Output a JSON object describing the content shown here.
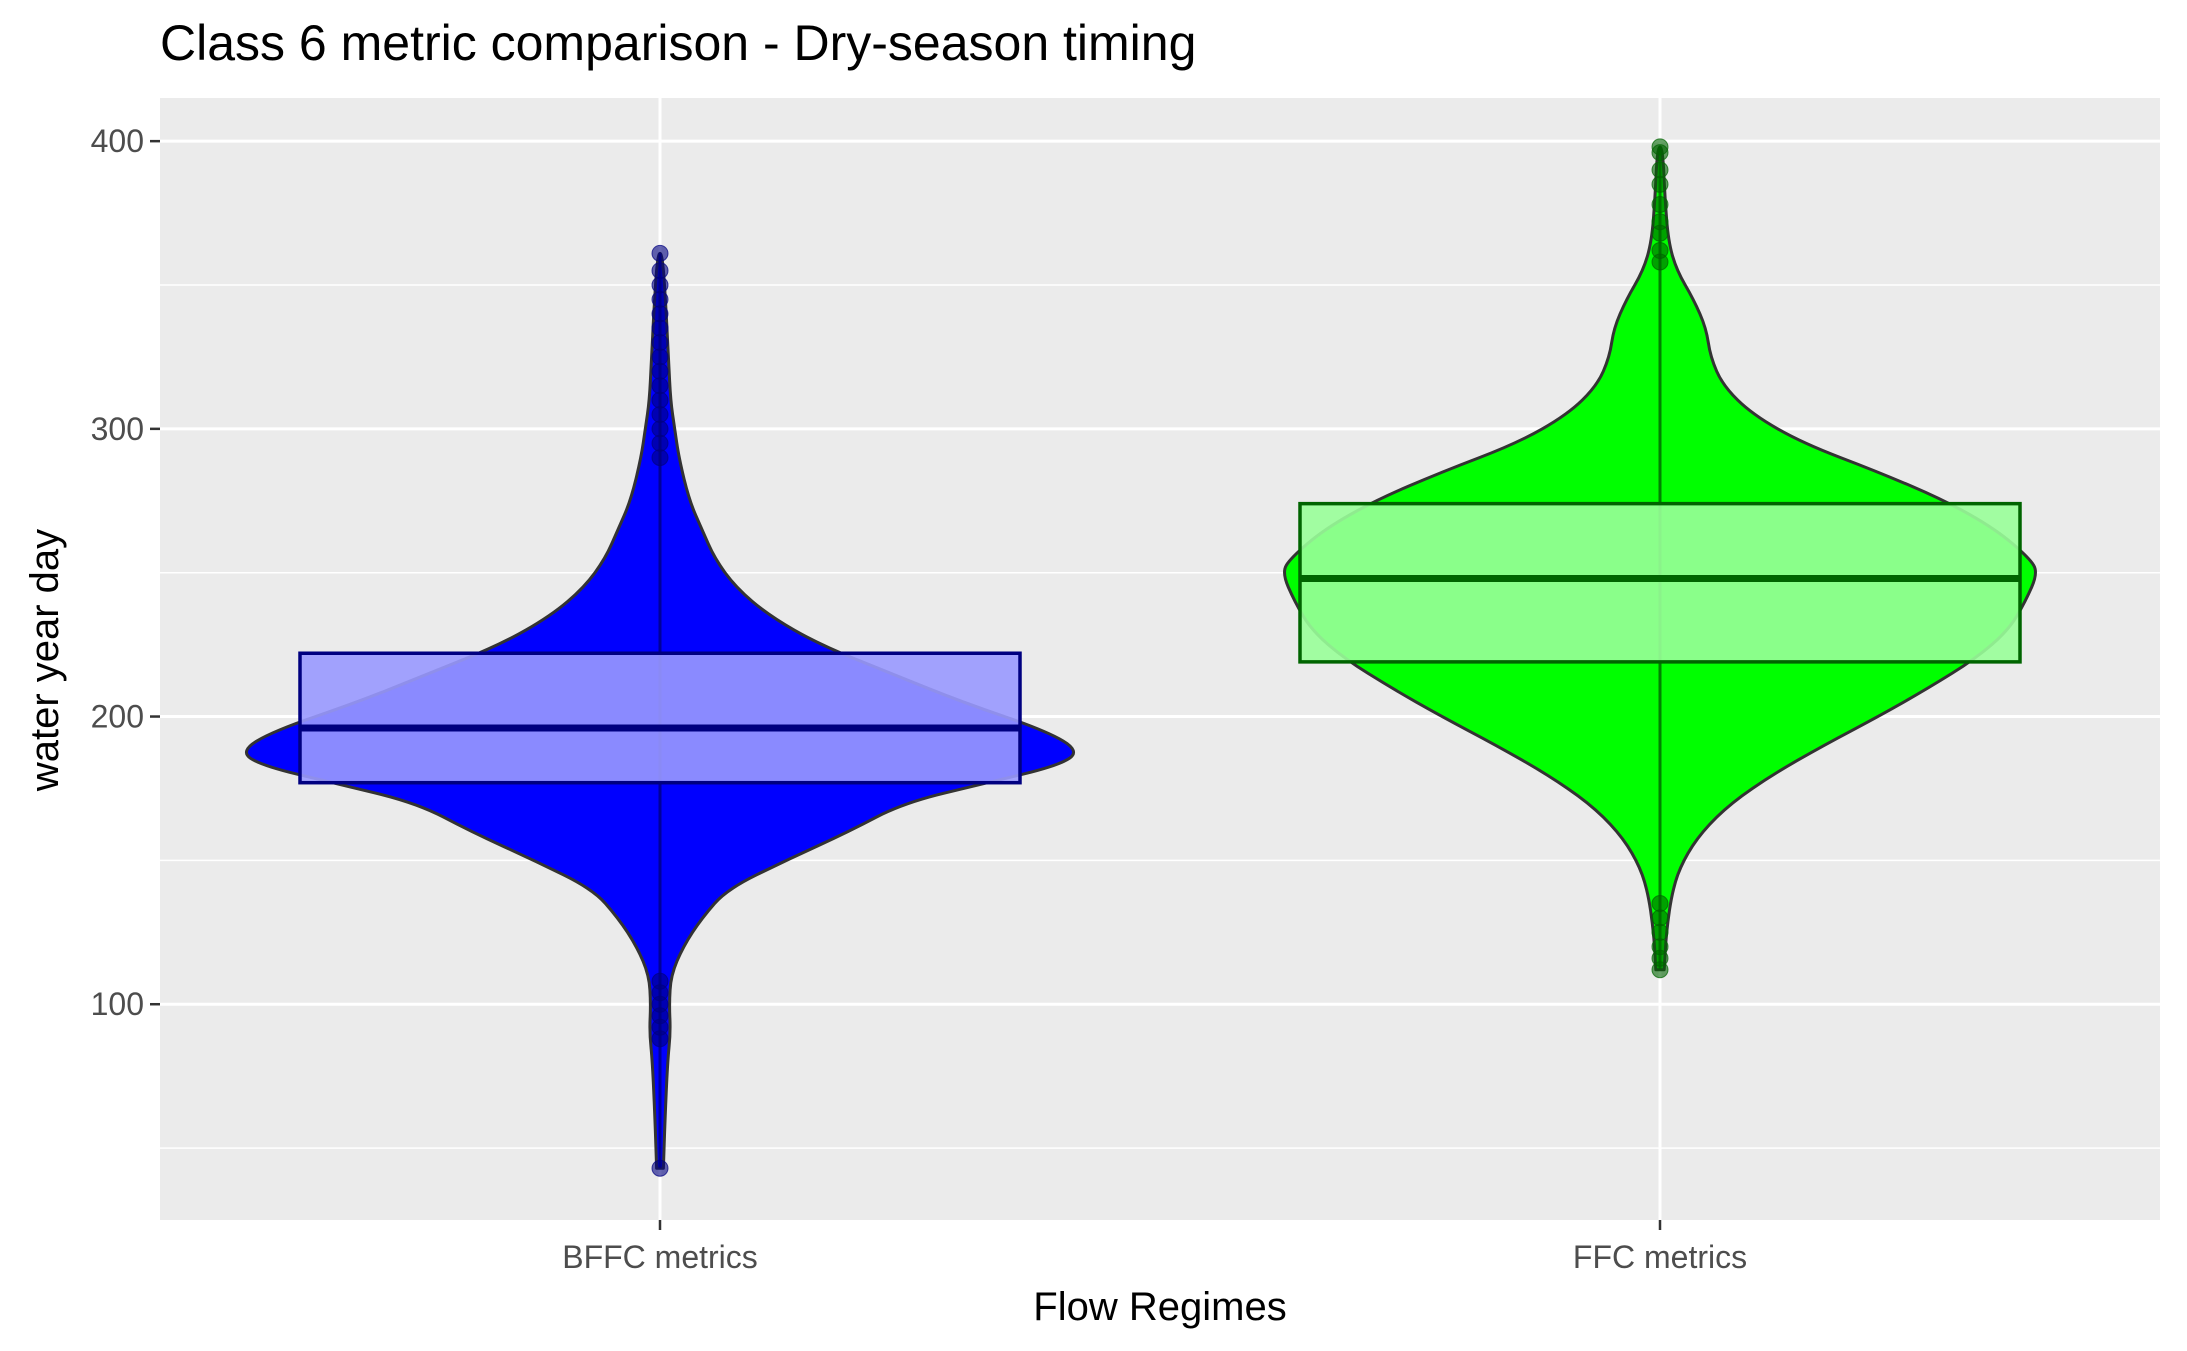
{
  "chart_data": {
    "type": "violin",
    "title": "Class 6 metric comparison - Dry-season timing",
    "xlabel": "Flow Regimes",
    "ylabel": "water year day",
    "ylim": [
      25,
      415
    ],
    "yticks": [
      100,
      200,
      300,
      400
    ],
    "categories": [
      "BFFC metrics",
      "FFC metrics"
    ],
    "grid": true,
    "legend": "none",
    "colors": {
      "panel": "#EBEBEB",
      "grid": "#FFFFFF",
      "outline": "#333333"
    },
    "series": [
      {
        "category": "BFFC metrics",
        "violin_fill": "#0000FF",
        "box_fill": "#9999FF",
        "box_outline": "#000080",
        "point_color": "#000080",
        "stats": {
          "min": 43,
          "q1": 177,
          "median": 196,
          "q3": 222,
          "max": 361
        },
        "outliers": [
          43,
          88,
          92,
          96,
          100,
          104,
          108,
          290,
          295,
          300,
          305,
          310,
          315,
          320,
          325,
          330,
          335,
          340,
          345,
          350,
          355,
          361
        ],
        "density": [
          [
            43,
            0.008
          ],
          [
            60,
            0.012
          ],
          [
            80,
            0.018
          ],
          [
            90,
            0.025
          ],
          [
            100,
            0.022
          ],
          [
            110,
            0.026
          ],
          [
            120,
            0.055
          ],
          [
            130,
            0.1
          ],
          [
            140,
            0.16
          ],
          [
            150,
            0.3
          ],
          [
            160,
            0.45
          ],
          [
            170,
            0.58
          ],
          [
            177,
            0.78
          ],
          [
            183,
            0.95
          ],
          [
            188,
            1.0
          ],
          [
            195,
            0.92
          ],
          [
            205,
            0.72
          ],
          [
            215,
            0.55
          ],
          [
            225,
            0.38
          ],
          [
            235,
            0.26
          ],
          [
            245,
            0.18
          ],
          [
            255,
            0.13
          ],
          [
            265,
            0.1
          ],
          [
            275,
            0.07
          ],
          [
            290,
            0.045
          ],
          [
            300,
            0.035
          ],
          [
            310,
            0.025
          ],
          [
            325,
            0.02
          ],
          [
            340,
            0.015
          ],
          [
            361,
            0.006
          ]
        ]
      },
      {
        "category": "FFC metrics",
        "violin_fill": "#00FF00",
        "box_fill": "#99FF99",
        "box_outline": "#006400",
        "point_color": "#006400",
        "stats": {
          "min": 112,
          "q1": 219,
          "median": 248,
          "q3": 274,
          "max": 398
        },
        "outliers": [
          112,
          116,
          120,
          125,
          130,
          135,
          358,
          362,
          368,
          372,
          378,
          385,
          390,
          396,
          398
        ],
        "density": [
          [
            112,
            0.01
          ],
          [
            125,
            0.015
          ],
          [
            140,
            0.03
          ],
          [
            150,
            0.055
          ],
          [
            160,
            0.1
          ],
          [
            170,
            0.17
          ],
          [
            180,
            0.27
          ],
          [
            190,
            0.39
          ],
          [
            200,
            0.52
          ],
          [
            210,
            0.64
          ],
          [
            220,
            0.75
          ],
          [
            230,
            0.83
          ],
          [
            240,
            0.87
          ],
          [
            250,
            0.9
          ],
          [
            255,
            0.88
          ],
          [
            265,
            0.8
          ],
          [
            275,
            0.68
          ],
          [
            285,
            0.52
          ],
          [
            295,
            0.34
          ],
          [
            305,
            0.22
          ],
          [
            315,
            0.15
          ],
          [
            325,
            0.12
          ],
          [
            335,
            0.11
          ],
          [
            345,
            0.08
          ],
          [
            355,
            0.04
          ],
          [
            365,
            0.02
          ],
          [
            380,
            0.012
          ],
          [
            398,
            0.006
          ]
        ]
      }
    ]
  }
}
